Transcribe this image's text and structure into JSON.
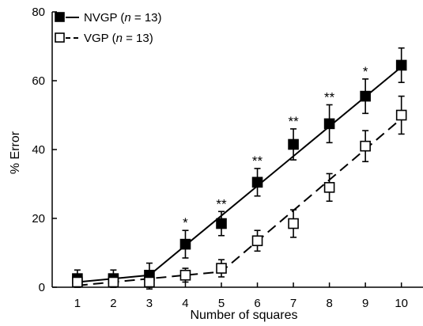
{
  "chart_data": {
    "type": "line",
    "title": "",
    "xlabel": "Number of squares",
    "ylabel": "% Error",
    "xlim": [
      0.3,
      10.6
    ],
    "ylim": [
      0,
      80
    ],
    "x": [
      1,
      2,
      3,
      4,
      5,
      6,
      7,
      8,
      9,
      10
    ],
    "x_ticks": [
      1,
      2,
      3,
      4,
      5,
      6,
      7,
      8,
      9,
      10
    ],
    "y_ticks": [
      0,
      20,
      40,
      60,
      80
    ],
    "legend_position": "top-left",
    "grid": false,
    "series": [
      {
        "name": "NVGP (n = 13)",
        "legend_parts": [
          "NVGP (",
          "n",
          " = 13)"
        ],
        "marker": "filled-square",
        "line_style": "solid",
        "values": [
          2.5,
          2.5,
          3.5,
          12.5,
          18.5,
          30.5,
          41.5,
          47.5,
          55.5,
          64.5
        ],
        "errors": [
          2.5,
          2.5,
          3.5,
          4,
          3.5,
          4,
          4.5,
          5.5,
          5,
          5
        ],
        "fit": [
          [
            1,
            1.5
          ],
          [
            3,
            3.5
          ],
          [
            10,
            64
          ]
        ]
      },
      {
        "name": "VGP (n = 13)",
        "legend_parts": [
          "VGP (",
          "n",
          " = 13)"
        ],
        "marker": "open-square",
        "line_style": "dashed",
        "values": [
          1.5,
          1.5,
          1.5,
          3.5,
          5.5,
          13.5,
          18.5,
          29,
          41,
          50
        ],
        "errors": [
          1.5,
          1.5,
          2,
          2,
          2.5,
          3,
          4,
          4,
          4.5,
          5.5
        ],
        "fit": [
          [
            1,
            0.5
          ],
          [
            5,
            4.5
          ],
          [
            10,
            49
          ]
        ]
      }
    ],
    "annotations": [
      {
        "x": 4,
        "label": "*"
      },
      {
        "x": 5,
        "label": "**"
      },
      {
        "x": 6,
        "label": "**"
      },
      {
        "x": 7,
        "label": "**"
      },
      {
        "x": 8,
        "label": "**"
      },
      {
        "x": 9,
        "label": "*"
      }
    ]
  }
}
